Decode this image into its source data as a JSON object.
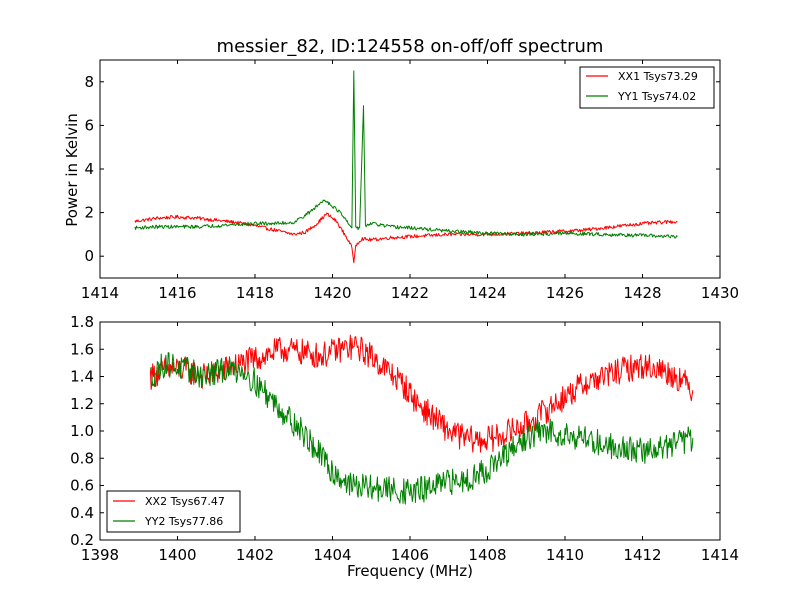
{
  "chart_data": [
    {
      "type": "line",
      "title": "messier_82, ID:124558 on-off/off spectrum",
      "xlabel": "",
      "ylabel": "Power in Kelvin",
      "xlim": [
        1414,
        1430
      ],
      "ylim": [
        -1,
        9
      ],
      "xticks": [
        1414,
        1416,
        1418,
        1420,
        1422,
        1424,
        1426,
        1428,
        1430
      ],
      "yticks": [
        0,
        2,
        4,
        6,
        8
      ],
      "legend_position": "top-right",
      "series": [
        {
          "name": "XX1 Tsys73.29",
          "color": "#ff0000",
          "points": [
            [
              1414.9,
              1.6
            ],
            [
              1415.5,
              1.75
            ],
            [
              1416.0,
              1.8
            ],
            [
              1416.5,
              1.75
            ],
            [
              1417.0,
              1.65
            ],
            [
              1417.5,
              1.55
            ],
            [
              1418.0,
              1.4
            ],
            [
              1418.5,
              1.2
            ],
            [
              1419.0,
              1.0
            ],
            [
              1419.3,
              1.1
            ],
            [
              1419.6,
              1.5
            ],
            [
              1419.85,
              1.95
            ],
            [
              1420.1,
              1.6
            ],
            [
              1420.35,
              0.9
            ],
            [
              1420.5,
              0.4
            ],
            [
              1420.55,
              -0.3
            ],
            [
              1420.6,
              0.5
            ],
            [
              1420.75,
              0.8
            ],
            [
              1421.0,
              0.75
            ],
            [
              1421.5,
              0.85
            ],
            [
              1422.0,
              0.9
            ],
            [
              1423.0,
              1.0
            ],
            [
              1424.0,
              1.0
            ],
            [
              1425.0,
              1.05
            ],
            [
              1426.0,
              1.15
            ],
            [
              1426.5,
              1.2
            ],
            [
              1427.0,
              1.3
            ],
            [
              1427.5,
              1.4
            ],
            [
              1428.0,
              1.5
            ],
            [
              1428.5,
              1.55
            ],
            [
              1428.9,
              1.6
            ]
          ]
        },
        {
          "name": "YY1 Tsys74.02",
          "color": "#008000",
          "points": [
            [
              1414.9,
              1.3
            ],
            [
              1415.5,
              1.35
            ],
            [
              1416.0,
              1.35
            ],
            [
              1416.5,
              1.35
            ],
            [
              1417.0,
              1.4
            ],
            [
              1417.5,
              1.45
            ],
            [
              1418.0,
              1.5
            ],
            [
              1418.5,
              1.5
            ],
            [
              1419.0,
              1.55
            ],
            [
              1419.4,
              2.0
            ],
            [
              1419.8,
              2.6
            ],
            [
              1420.2,
              2.0
            ],
            [
              1420.4,
              1.5
            ],
            [
              1420.5,
              1.3
            ],
            [
              1420.55,
              8.5
            ],
            [
              1420.6,
              1.3
            ],
            [
              1420.7,
              1.3
            ],
            [
              1420.8,
              6.9
            ],
            [
              1420.85,
              1.4
            ],
            [
              1421.0,
              1.5
            ],
            [
              1421.5,
              1.35
            ],
            [
              1422.0,
              1.3
            ],
            [
              1423.0,
              1.15
            ],
            [
              1424.0,
              1.05
            ],
            [
              1425.0,
              1.0
            ],
            [
              1426.0,
              1.05
            ],
            [
              1427.0,
              1.0
            ],
            [
              1428.0,
              0.95
            ],
            [
              1428.9,
              0.9
            ]
          ]
        }
      ]
    },
    {
      "type": "line",
      "title": "",
      "xlabel": "Frequency (MHz)",
      "ylabel": "",
      "xlim": [
        1398,
        1414
      ],
      "ylim": [
        0.2,
        1.8
      ],
      "xticks": [
        1398,
        1400,
        1402,
        1404,
        1406,
        1408,
        1410,
        1412,
        1414
      ],
      "yticks": [
        0.2,
        0.4,
        0.6,
        0.8,
        1.0,
        1.2,
        1.4,
        1.6,
        1.8
      ],
      "legend_position": "bottom-left",
      "series": [
        {
          "name": "XX2 Tsys67.47",
          "color": "#ff0000",
          "points": [
            [
              1399.3,
              1.4
            ],
            [
              1399.7,
              1.45
            ],
            [
              1400.2,
              1.45
            ],
            [
              1400.7,
              1.4
            ],
            [
              1401.2,
              1.45
            ],
            [
              1401.7,
              1.5
            ],
            [
              1402.2,
              1.55
            ],
            [
              1402.7,
              1.6
            ],
            [
              1403.2,
              1.58
            ],
            [
              1403.7,
              1.55
            ],
            [
              1404.2,
              1.6
            ],
            [
              1404.6,
              1.62
            ],
            [
              1405.0,
              1.55
            ],
            [
              1405.4,
              1.45
            ],
            [
              1405.8,
              1.35
            ],
            [
              1406.2,
              1.2
            ],
            [
              1406.6,
              1.1
            ],
            [
              1407.0,
              1.0
            ],
            [
              1407.4,
              0.95
            ],
            [
              1407.8,
              0.93
            ],
            [
              1408.2,
              0.95
            ],
            [
              1408.6,
              1.0
            ],
            [
              1409.0,
              1.05
            ],
            [
              1409.5,
              1.15
            ],
            [
              1410.0,
              1.25
            ],
            [
              1410.5,
              1.35
            ],
            [
              1411.0,
              1.4
            ],
            [
              1411.5,
              1.45
            ],
            [
              1412.0,
              1.48
            ],
            [
              1412.5,
              1.45
            ],
            [
              1413.0,
              1.38
            ],
            [
              1413.3,
              1.3
            ]
          ]
        },
        {
          "name": "YY2 Tsys77.86",
          "color": "#008000",
          "points": [
            [
              1399.3,
              1.4
            ],
            [
              1399.7,
              1.5
            ],
            [
              1400.2,
              1.45
            ],
            [
              1400.7,
              1.4
            ],
            [
              1401.2,
              1.45
            ],
            [
              1401.7,
              1.45
            ],
            [
              1402.2,
              1.3
            ],
            [
              1402.7,
              1.15
            ],
            [
              1403.2,
              1.0
            ],
            [
              1403.6,
              0.85
            ],
            [
              1404.0,
              0.7
            ],
            [
              1404.5,
              0.6
            ],
            [
              1405.0,
              0.58
            ],
            [
              1405.5,
              0.57
            ],
            [
              1406.0,
              0.55
            ],
            [
              1406.5,
              0.58
            ],
            [
              1407.0,
              0.62
            ],
            [
              1407.5,
              0.65
            ],
            [
              1408.0,
              0.72
            ],
            [
              1408.5,
              0.82
            ],
            [
              1409.0,
              0.95
            ],
            [
              1409.5,
              1.0
            ],
            [
              1410.0,
              0.98
            ],
            [
              1410.5,
              0.95
            ],
            [
              1411.0,
              0.9
            ],
            [
              1411.5,
              0.88
            ],
            [
              1412.0,
              0.85
            ],
            [
              1412.5,
              0.88
            ],
            [
              1413.0,
              0.92
            ],
            [
              1413.3,
              0.95
            ]
          ]
        }
      ]
    }
  ]
}
